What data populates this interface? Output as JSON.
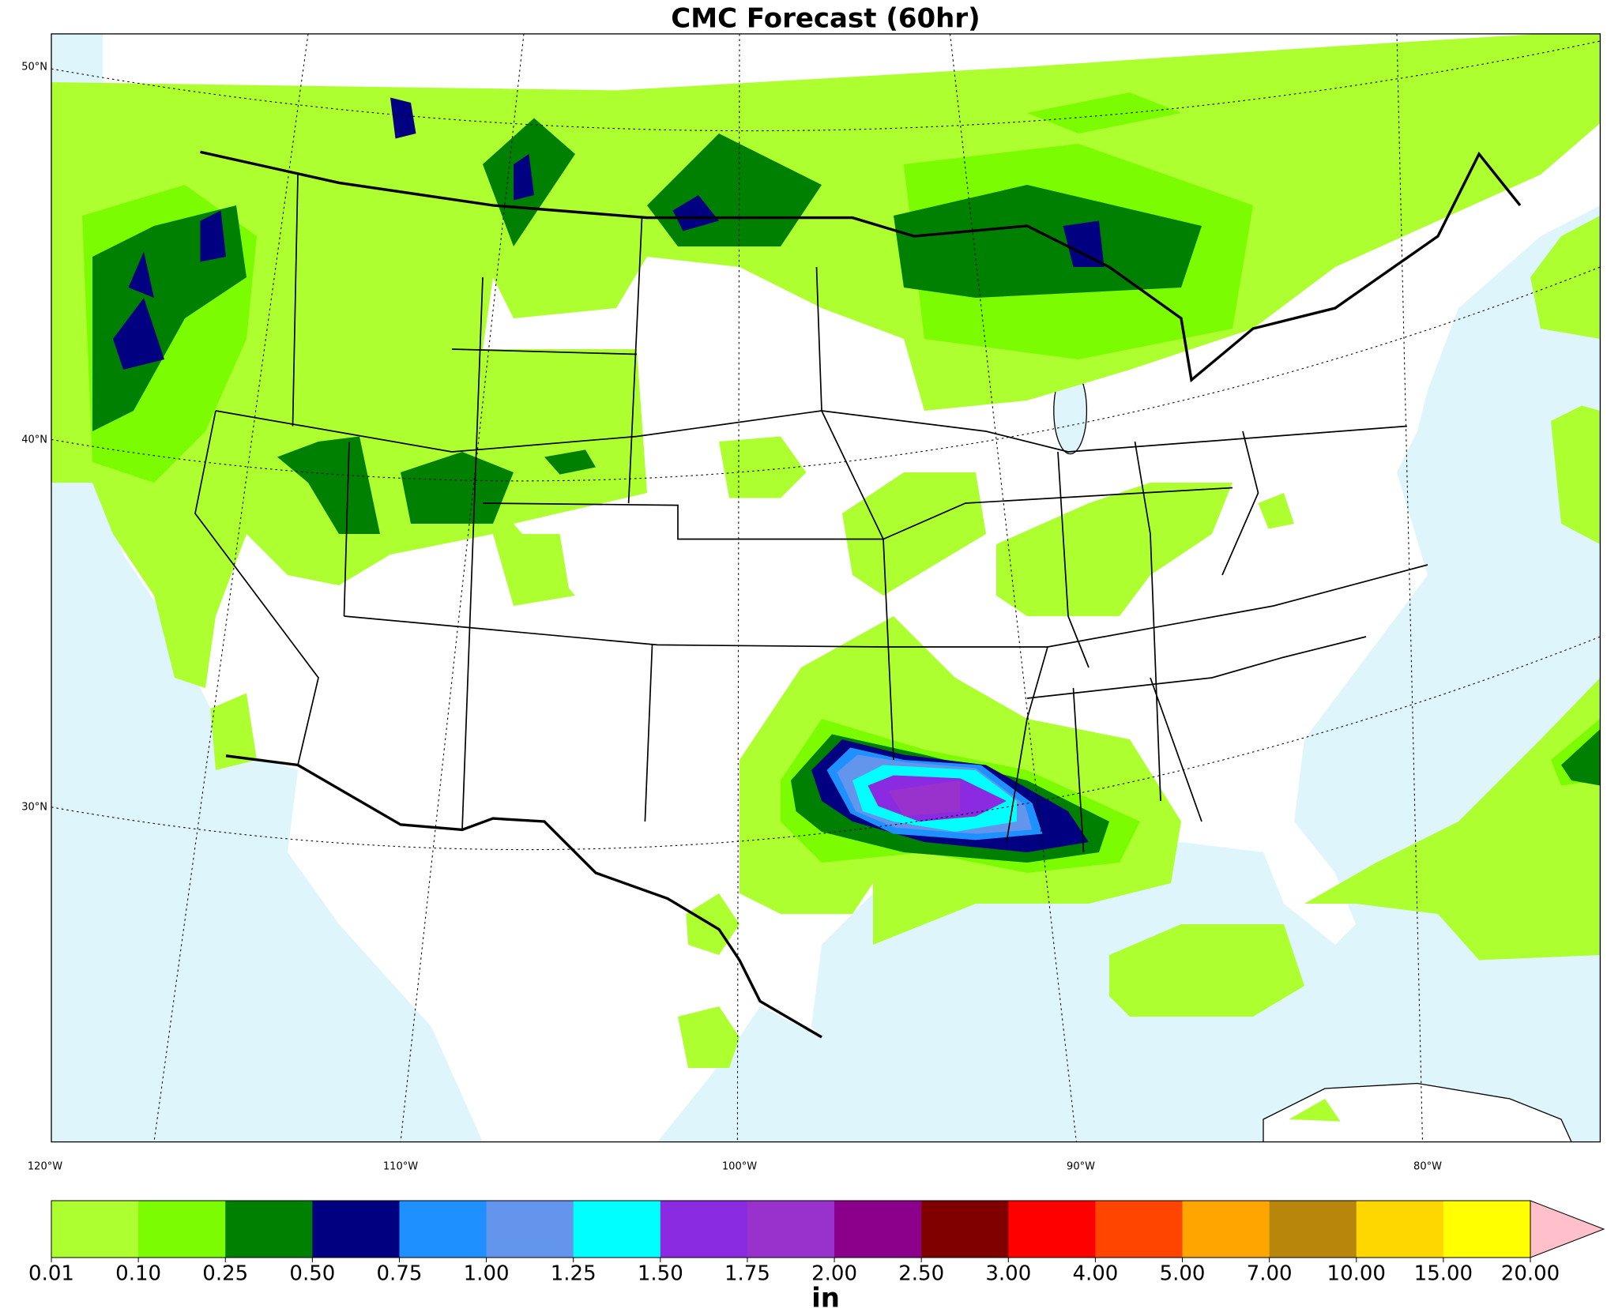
{
  "title": "CMC Forecast (60hr)",
  "lat_labels": [
    "50°N",
    "40°N",
    "30°N"
  ],
  "lon_labels": [
    "120°W",
    "110°W",
    "100°W",
    "90°W",
    "80°W"
  ],
  "colorbar": {
    "ticks": [
      {
        "value": 0.01,
        "label": "0.01"
      },
      {
        "value": 0.1,
        "label": "0.10"
      },
      {
        "value": 0.25,
        "label": "0.25"
      },
      {
        "value": 0.5,
        "label": "0.50"
      },
      {
        "value": 0.75,
        "label": "0.75"
      },
      {
        "value": 1,
        "label": "1.00"
      },
      {
        "value": 1.25,
        "label": "1.25"
      },
      {
        "value": 1.5,
        "label": "1.50"
      },
      {
        "value": 1.75,
        "label": "1.75"
      },
      {
        "value": 2,
        "label": "2.00"
      },
      {
        "value": 2.5,
        "label": "2.50"
      },
      {
        "value": 3,
        "label": "3.00"
      },
      {
        "value": 4,
        "label": "4.00"
      },
      {
        "value": 5,
        "label": "5.00"
      },
      {
        "value": 7,
        "label": "7.00"
      },
      {
        "value": 10,
        "label": "10.00"
      },
      {
        "value": 15,
        "label": "15.00"
      },
      {
        "value": 20,
        "label": "20.00"
      }
    ],
    "colors": [
      "#adff2f",
      "#7cfc00",
      "#008000",
      "#000080",
      "#1e90ff",
      "#6495ed",
      "#00ffff",
      "#8a2be2",
      "#9932cc",
      "#8b008b",
      "#800000",
      "#ff0000",
      "#ff4500",
      "#ffa500",
      "#b8860b",
      "#ffd700",
      "#ffff00"
    ],
    "extend_color": "#ffc0cb",
    "label": "in"
  }
}
